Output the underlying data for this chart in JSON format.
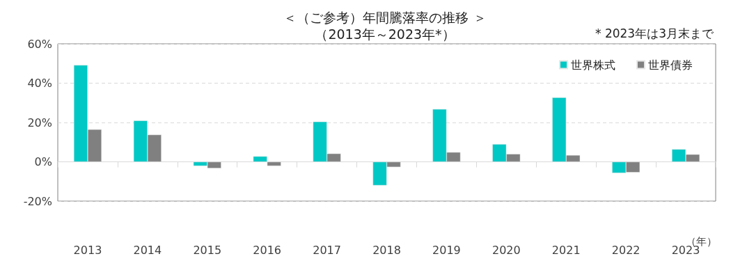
{
  "chart_data": {
    "type": "bar",
    "title": "＜（ご参考）年間騰落率の推移 ＞",
    "subtitle": "（2013年～2023年*）",
    "xlabel": "（年）",
    "annotations": [
      "* 2023年は3月末まで"
    ],
    "categories": [
      "2013",
      "2014",
      "2015",
      "2016",
      "2017",
      "2018",
      "2019",
      "2020",
      "2021",
      "2022",
      "2023"
    ],
    "series": [
      {
        "name": "世界株式",
        "color": "#00c8c4",
        "values": [
          49.2,
          21.0,
          -2.1,
          2.8,
          20.4,
          -12.0,
          26.8,
          9.0,
          32.7,
          -5.7,
          6.4
        ]
      },
      {
        "name": "世界債券",
        "color": "#808080",
        "values": [
          16.5,
          13.8,
          -3.3,
          -2.1,
          4.2,
          -2.7,
          4.9,
          4.0,
          3.4,
          -5.4,
          3.8
        ]
      }
    ],
    "ylim": [
      -20,
      60
    ],
    "yticks": [
      {
        "value": -20,
        "label": "-20%"
      },
      {
        "value": 0,
        "label": "0%"
      },
      {
        "value": 20,
        "label": "20%"
      },
      {
        "value": 40,
        "label": "40%"
      },
      {
        "value": 60,
        "label": "60%"
      }
    ],
    "grid": "y",
    "legend": "top right"
  }
}
